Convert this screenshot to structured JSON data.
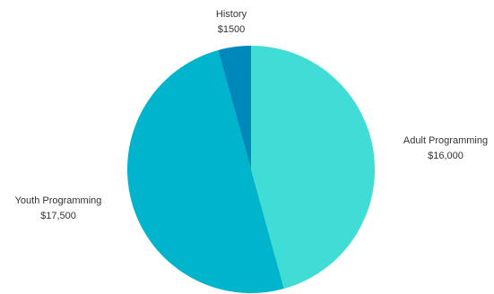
{
  "chart_data": {
    "type": "pie",
    "slices": [
      {
        "label": "Adult Programming",
        "value_label": "$16,000",
        "value": 16000,
        "color": "#40DCD6"
      },
      {
        "label": "Youth Programming",
        "value_label": "$17,500",
        "value": 17500,
        "color": "#00B4CC"
      },
      {
        "label": "History",
        "value_label": "$1500",
        "value": 1500,
        "color": "#0088BB"
      }
    ],
    "start_angle_deg": 0,
    "direction": "clockwise",
    "legend": "none"
  }
}
